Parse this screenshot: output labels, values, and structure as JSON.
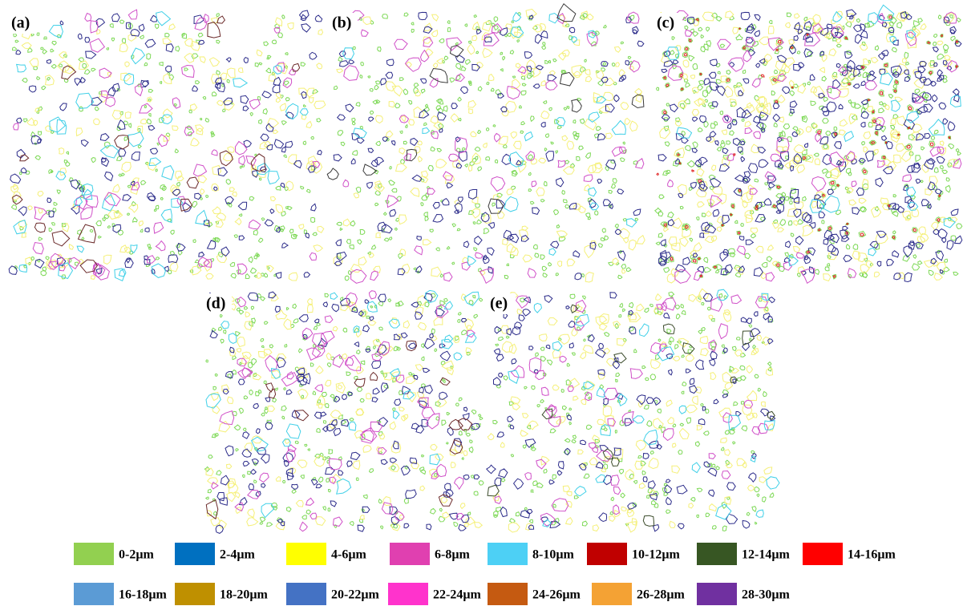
{
  "panels": [
    {
      "label": "(a)"
    },
    {
      "label": "(b)"
    },
    {
      "label": "(c)"
    },
    {
      "label": "(d)"
    },
    {
      "label": "(e)"
    }
  ],
  "legend": [
    {
      "label": "0-2µm",
      "color": "#92d050"
    },
    {
      "label": "2-4µm",
      "color": "#0070c0"
    },
    {
      "label": "4-6µm",
      "color": "#ffff00"
    },
    {
      "label": "6-8µm",
      "color": "#e040b0"
    },
    {
      "label": "8-10µm",
      "color": "#4dd0f5"
    },
    {
      "label": "10-12µm",
      "color": "#c00000"
    },
    {
      "label": "12-14µm",
      "color": "#375623"
    },
    {
      "label": "14-16µm",
      "color": "#ff0000"
    },
    {
      "label": "16-18µm",
      "color": "#5b9bd5"
    },
    {
      "label": "18-20µm",
      "color": "#bf9000"
    },
    {
      "label": "20-22µm",
      "color": "#4472c4"
    },
    {
      "label": "22-24µm",
      "color": "#ff33cc"
    },
    {
      "label": "24-26µm",
      "color": "#c55a11"
    },
    {
      "label": "26-28µm",
      "color": "#f4a234"
    },
    {
      "label": "28-30µm",
      "color": "#7030a0"
    }
  ]
}
